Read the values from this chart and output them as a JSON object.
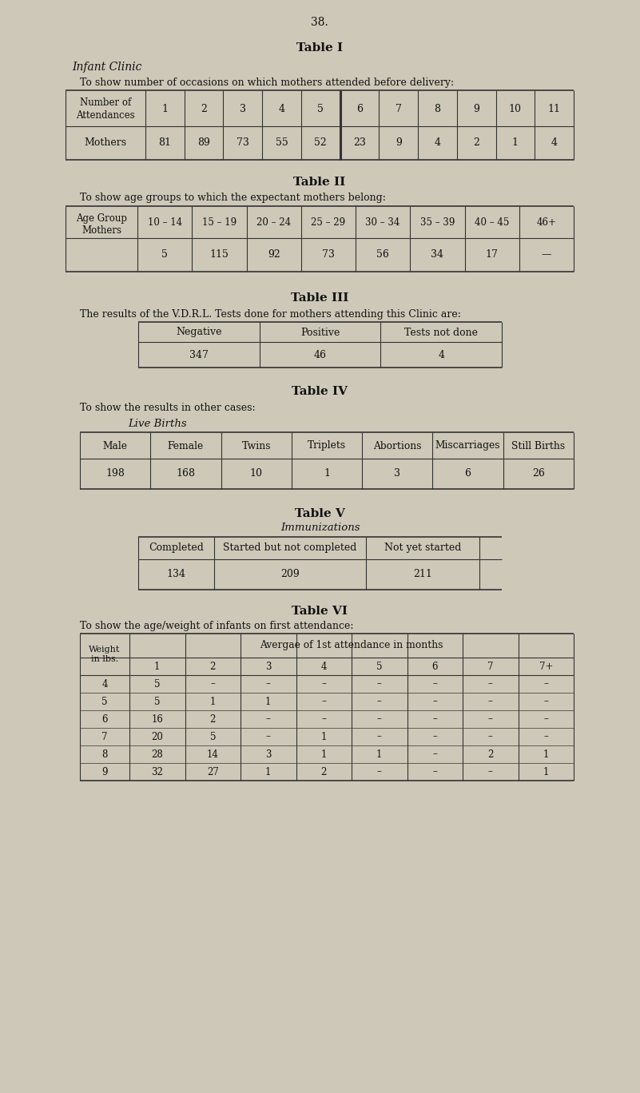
{
  "bg_color": "#cdc8b8",
  "text_color": "#111111",
  "page_number": "38.",
  "table1": {
    "title": "Table I",
    "subtitle_italic": "Infant Clinic",
    "description": "To show number of occasions on which mothers attended before delivery:",
    "headers": [
      "Number of\nAttendances",
      "1",
      "2",
      "3",
      "4",
      "5",
      "6",
      "7",
      "8",
      "9",
      "10",
      "11"
    ],
    "row_label": "Mothers",
    "values": [
      "81",
      "89",
      "73",
      "55",
      "52",
      "23",
      "9",
      "4",
      "2",
      "1",
      "4"
    ]
  },
  "table2": {
    "title": "Table II",
    "description": "To show age groups to which the expectant mothers belong:",
    "age_labels": [
      "10 – 14",
      "15 – 19",
      "20 – 24",
      "25 – 29",
      "30 – 34",
      "35 – 39",
      "40 – 45",
      "46+"
    ],
    "row_label_header": "Age Group",
    "row_label_sub": "Mothers",
    "values": [
      "5",
      "115",
      "92",
      "73",
      "56",
      "34",
      "17",
      "—"
    ]
  },
  "table3": {
    "title": "Table III",
    "description": "The results of the V.D.R.L. Tests done for mothers attending this Clinic are:",
    "headers": [
      "Negative",
      "Positive",
      "Tests not done"
    ],
    "values": [
      "347",
      "46",
      "4"
    ]
  },
  "table4": {
    "title": "Table IV",
    "description": "To show the results in other cases:",
    "subtitle_italic": "Live Births",
    "headers": [
      "Male",
      "Female",
      "Twins",
      "Triplets",
      "Abortions",
      "Miscarriages",
      "Still Births"
    ],
    "values": [
      "198",
      "168",
      "10",
      "1",
      "3",
      "6",
      "26"
    ]
  },
  "table5": {
    "title": "Table V",
    "subtitle_italic": "Immunizations",
    "headers": [
      "Completed",
      "Started but not completed",
      "Not yet started"
    ],
    "values": [
      "134",
      "209",
      "211"
    ]
  },
  "table6": {
    "title": "Table VI",
    "description": "To show the age/weight of infants on first attendance:",
    "col_header_label": "Weight\nin lbs.",
    "col_header_span": "Avergae of 1st attendance in months",
    "month_cols": [
      "1",
      "2",
      "3",
      "4",
      "5",
      "6",
      "7",
      "7+"
    ],
    "weights": [
      "4",
      "5",
      "6",
      "7",
      "8",
      "9"
    ],
    "data": [
      [
        "5",
        "–",
        "–",
        "–",
        "–",
        "–",
        "–",
        "–"
      ],
      [
        "5",
        "1",
        "1",
        "–",
        "–",
        "–",
        "–",
        "–"
      ],
      [
        "16",
        "2",
        "–",
        "–",
        "–",
        "–",
        "–",
        "–"
      ],
      [
        "20",
        "5",
        "–",
        "1",
        "–",
        "–",
        "–",
        "–"
      ],
      [
        "28",
        "14",
        "3",
        "1",
        "1",
        "–",
        "2",
        "1"
      ],
      [
        "32",
        "27",
        "1",
        "2",
        "–",
        "–",
        "–",
        "1"
      ]
    ]
  }
}
